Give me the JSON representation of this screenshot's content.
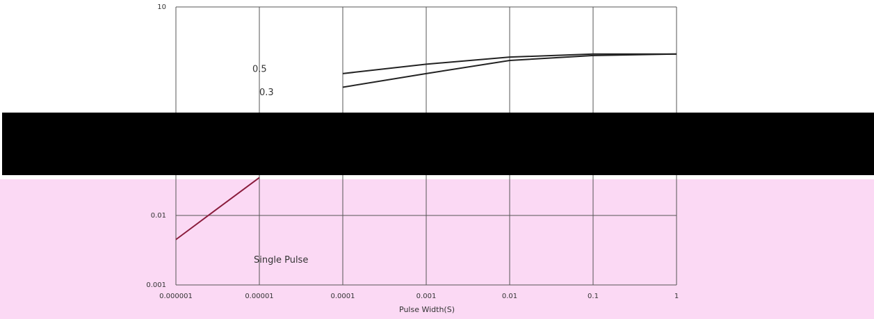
{
  "chart_data": {
    "type": "line",
    "x_label": "Pulse Width(S)",
    "x": [
      1e-06,
      3e-06,
      1e-05,
      0.0001,
      0.001,
      0.01,
      0.1,
      1
    ],
    "series": [
      {
        "name": "0.5",
        "color": "#222222",
        "values": [
          null,
          null,
          null,
          1.1,
          1.5,
          1.9,
          2.1,
          2.1
        ]
      },
      {
        "name": "0.3",
        "color": "#222222",
        "values": [
          null,
          null,
          null,
          0.7,
          1.1,
          1.7,
          2.0,
          2.1
        ]
      },
      {
        "name": "Single Pulse",
        "color": "#8a1c3c",
        "values": [
          0.0045,
          0.012,
          0.035,
          null,
          null,
          null,
          null,
          null
        ]
      }
    ],
    "xscale": "log",
    "yscale": "log",
    "xlim": [
      1e-06,
      1
    ],
    "ylim": [
      0.001,
      10
    ],
    "xticks": [
      1e-06,
      1e-05,
      0.0001,
      0.001,
      0.01,
      0.1,
      1
    ],
    "yticks": [
      0.001,
      0.01,
      10
    ],
    "grid": true
  }
}
